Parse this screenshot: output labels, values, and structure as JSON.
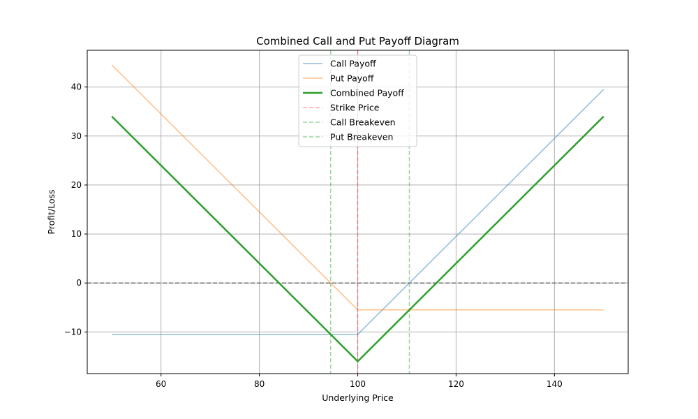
{
  "chart_data": {
    "type": "line",
    "title": "Combined Call and Put Payoff Diagram",
    "xlabel": "Underlying Price",
    "ylabel": "Profit/Loss",
    "xlim": [
      45,
      155
    ],
    "ylim": [
      -18.5,
      47.5
    ],
    "xticks": [
      60,
      80,
      100,
      120,
      140
    ],
    "yticks": [
      -10,
      0,
      10,
      20,
      30,
      40
    ],
    "ytick_labels": [
      "−10",
      "0",
      "10",
      "20",
      "30",
      "40"
    ],
    "grid": true,
    "legend_position": "top-center",
    "series": [
      {
        "name": "Call Payoff",
        "color": "#1f77b4",
        "opacity": 0.5,
        "width": 1.5,
        "dash": "solid",
        "x": [
          50,
          100,
          150
        ],
        "y": [
          -10.5,
          -10.5,
          39.5
        ]
      },
      {
        "name": "Put Payoff",
        "color": "#ff7f0e",
        "opacity": 0.5,
        "width": 1.5,
        "dash": "solid",
        "x": [
          50,
          100,
          150
        ],
        "y": [
          44.5,
          -5.5,
          -5.5
        ]
      },
      {
        "name": "Combined Payoff",
        "color": "#2ca02c",
        "opacity": 1.0,
        "width": 2.5,
        "dash": "solid",
        "x": [
          50,
          100,
          150
        ],
        "y": [
          34,
          -16,
          34
        ]
      }
    ],
    "vlines": [
      {
        "name": "Strike Price",
        "x": 100,
        "color": "#ff0000",
        "opacity": 0.35
      },
      {
        "name": "Call Breakeven",
        "x": 110.5,
        "color": "#2ca02c",
        "opacity": 0.45
      },
      {
        "name": "Put Breakeven",
        "x": 94.5,
        "color": "#2ca02c",
        "opacity": 0.45
      }
    ],
    "hline": {
      "y": 0,
      "color": "#000000",
      "opacity": 0.45
    }
  }
}
